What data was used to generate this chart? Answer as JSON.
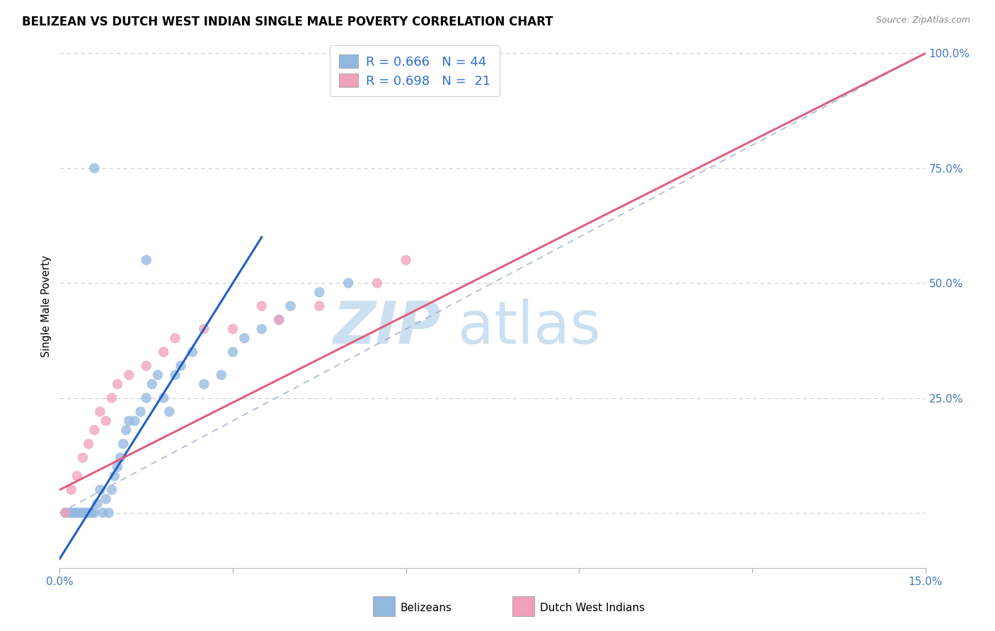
{
  "title": "BELIZEAN VS DUTCH WEST INDIAN SINGLE MALE POVERTY CORRELATION CHART",
  "source": "Source: ZipAtlas.com",
  "ylabel": "Single Male Poverty",
  "xmin": 0.0,
  "xmax": 15.0,
  "ymin": -12.0,
  "ymax": 102.0,
  "ytick_vals": [
    0,
    25,
    50,
    75,
    100
  ],
  "ytick_labels_right": [
    "",
    "25.0%",
    "50.0%",
    "75.0%",
    "100.0%"
  ],
  "xtick_vals": [
    0.0,
    3.0,
    6.0,
    9.0,
    12.0,
    15.0
  ],
  "xtick_label_0": "0.0%",
  "xtick_label_15": "15.0%",
  "gridline_color": "#c8c8c8",
  "belizean_color": "#92b8e0",
  "dutch_color": "#f0a0b8",
  "belizean_R": "0.666",
  "belizean_N": "44",
  "dutch_R": "0.698",
  "dutch_N": "21",
  "belizean_line_color": "#2060c0",
  "dutch_line_color": "#e06080",
  "diag_line_color": "#9aacd0",
  "legend_text_color": "#3070d0",
  "axis_tick_color": "#4478c0",
  "belizean_scatter_x": [
    0.1,
    0.15,
    0.2,
    0.25,
    0.3,
    0.35,
    0.4,
    0.45,
    0.5,
    0.55,
    0.6,
    0.65,
    0.7,
    0.75,
    0.8,
    0.85,
    0.9,
    0.95,
    1.0,
    1.05,
    1.1,
    1.15,
    1.2,
    1.3,
    1.4,
    1.5,
    1.6,
    1.7,
    1.8,
    1.9,
    2.0,
    2.1,
    2.3,
    2.5,
    2.8,
    3.0,
    3.2,
    3.5,
    3.8,
    4.0,
    4.5,
    5.0,
    0.6,
    1.5
  ],
  "belizean_scatter_y": [
    0.0,
    0.0,
    0.0,
    0.0,
    0.0,
    0.0,
    0.0,
    0.0,
    0.0,
    0.0,
    0.0,
    2.0,
    5.0,
    0.0,
    3.0,
    0.0,
    5.0,
    8.0,
    10.0,
    12.0,
    15.0,
    18.0,
    20.0,
    20.0,
    22.0,
    25.0,
    28.0,
    30.0,
    25.0,
    22.0,
    30.0,
    32.0,
    35.0,
    28.0,
    30.0,
    35.0,
    38.0,
    40.0,
    42.0,
    45.0,
    48.0,
    50.0,
    75.0,
    55.0
  ],
  "dutch_scatter_x": [
    0.1,
    0.2,
    0.3,
    0.4,
    0.5,
    0.6,
    0.7,
    0.8,
    0.9,
    1.0,
    1.2,
    1.5,
    1.8,
    2.0,
    2.5,
    3.0,
    3.5,
    3.8,
    4.5,
    5.5,
    6.0
  ],
  "dutch_scatter_y": [
    0.0,
    5.0,
    8.0,
    12.0,
    15.0,
    18.0,
    22.0,
    20.0,
    25.0,
    28.0,
    30.0,
    32.0,
    35.0,
    38.0,
    40.0,
    40.0,
    45.0,
    42.0,
    45.0,
    50.0,
    55.0
  ],
  "belizean_reg_x0": 0.0,
  "belizean_reg_y0": -10.0,
  "belizean_reg_x1": 3.5,
  "belizean_reg_y1": 60.0,
  "dutch_reg_x0": 0.0,
  "dutch_reg_y0": 5.0,
  "dutch_reg_x1": 15.0,
  "dutch_reg_y1": 100.0,
  "diag_x0": 0.0,
  "diag_y0": 0.0,
  "diag_x1": 15.0,
  "diag_y1": 100.0
}
